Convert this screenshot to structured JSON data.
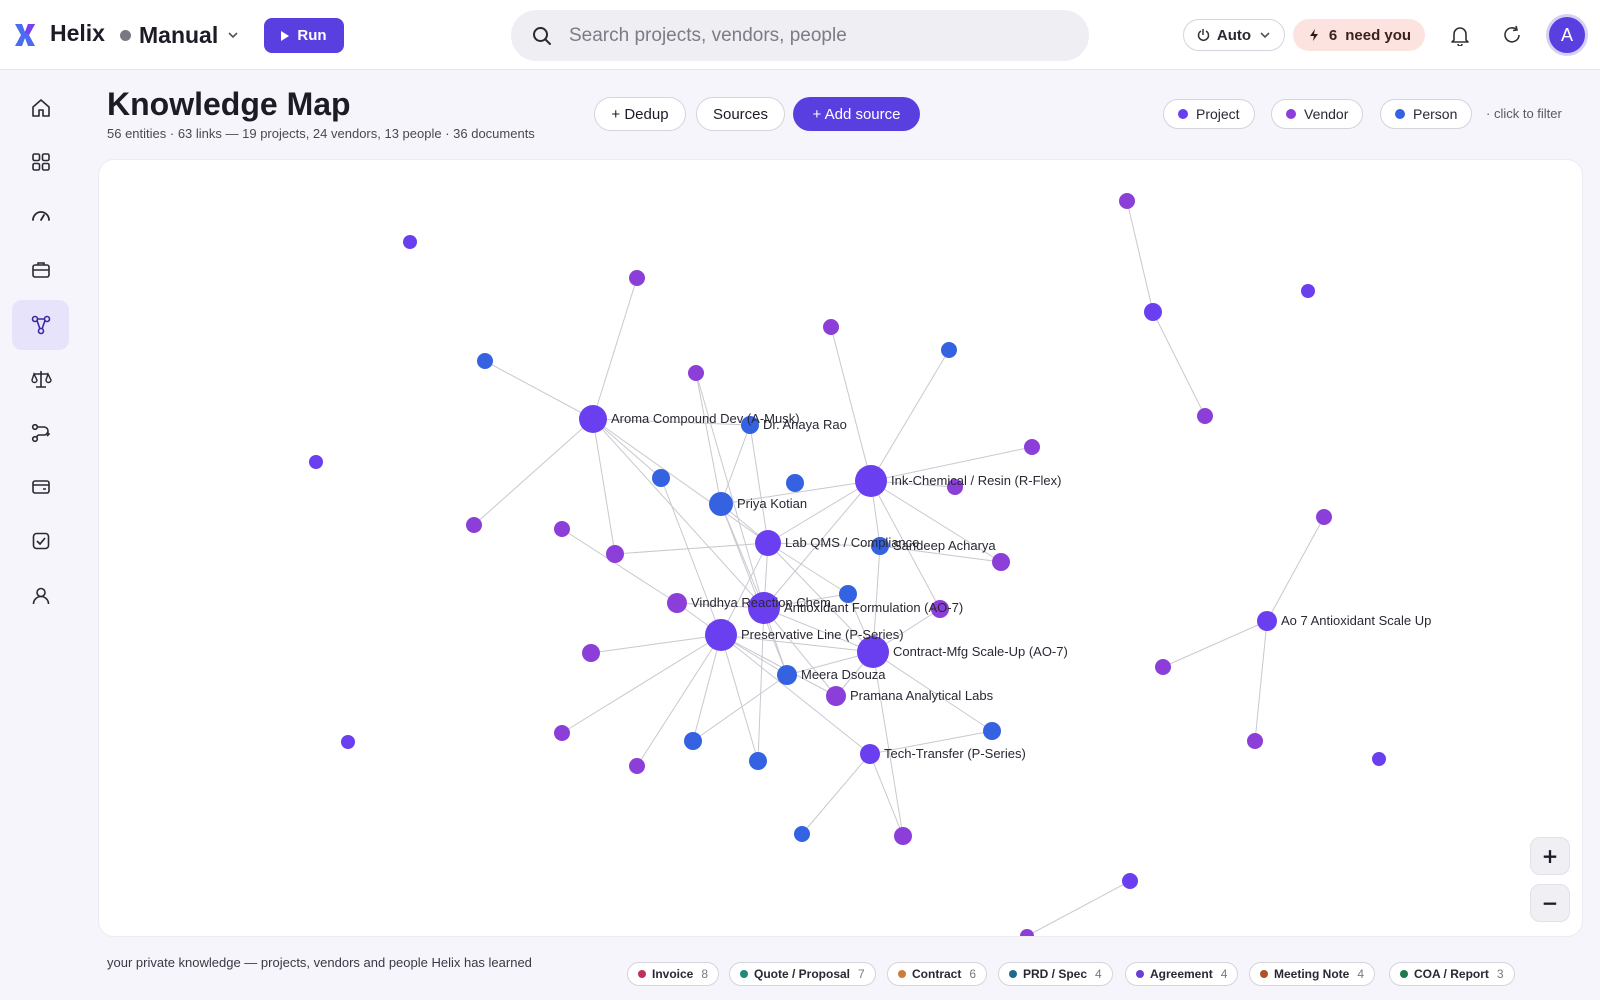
{
  "app": {
    "brand": "Helix",
    "mode_label": "Manual",
    "run_label": "Run",
    "search_placeholder": "Search projects, vendors, people",
    "auto_label": "Auto",
    "need_count": "6",
    "need_label": "need you",
    "avatar_initial": "A",
    "accent": "#5a3fe0"
  },
  "sidebar": {
    "items": [
      {
        "name": "home-icon"
      },
      {
        "name": "grid-icon"
      },
      {
        "name": "gauge-icon"
      },
      {
        "name": "briefcase-icon"
      },
      {
        "name": "graph-icon",
        "active": true
      },
      {
        "name": "scale-icon"
      },
      {
        "name": "workflow-icon"
      },
      {
        "name": "wallet-icon"
      },
      {
        "name": "checkbox-icon"
      },
      {
        "name": "user-icon"
      }
    ]
  },
  "header": {
    "title": "Knowledge Map",
    "subtitle": "56 entities · 63 links — 19 projects, 24 vendors, 13 people · 36 documents",
    "dedup_label": "+ Dedup",
    "sources_label": "Sources",
    "add_source_label": "+ Add source",
    "filters": [
      {
        "label": "Project",
        "color": "#6a3ff0"
      },
      {
        "label": "Vendor",
        "color": "#8b3fd8"
      },
      {
        "label": "Person",
        "color": "#3562e0"
      }
    ],
    "filter_hint": "· click to filter"
  },
  "graph": {
    "colors": {
      "project": "#6a3ff0",
      "vendor": "#8b3fd8",
      "person": "#3562e0",
      "edge": "#c9c8cf"
    },
    "labels": {
      "aroma": "Aroma Compound Dev (A-Musk)",
      "anaya": "Dr. Anaya Rao",
      "ink": "Ink-Chemical / Resin (R-Flex)",
      "priya": "Priya Kotian",
      "labqms": "Lab QMS / Compliance",
      "sandeep": "Sandeep Acharya",
      "vindhya": "Vindhya Reaction Chem",
      "antiox": "Antioxidant Formulation (AO-7)",
      "preserv": "Preservative Line (P-Series)",
      "contract": "Contract-Mfg Scale-Up (AO-7)",
      "meera": "Meera Dsouza",
      "pramana": "Pramana Analytical Labs",
      "tech": "Tech-Transfer (P-Series)",
      "ao7": "Ao 7 Antioxidant Scale Up"
    }
  },
  "zoom": {
    "in": "+",
    "out": "−"
  },
  "footer": {
    "note": "your private knowledge — projects, vendors and people Helix has learned",
    "tags": [
      {
        "label": "Invoice",
        "count": "8",
        "color": "#c0305a"
      },
      {
        "label": "Quote / Proposal",
        "count": "7",
        "color": "#1e8a7a"
      },
      {
        "label": "Contract",
        "count": "6",
        "color": "#d07a3a"
      },
      {
        "label": "PRD / Spec",
        "count": "4",
        "color": "#1e6a8a"
      },
      {
        "label": "Agreement",
        "count": "4",
        "color": "#6a3fd8"
      },
      {
        "label": "Meeting Note",
        "count": "4",
        "color": "#b0502a"
      },
      {
        "label": "COA / Report",
        "count": "3",
        "color": "#1e7a4a"
      }
    ]
  }
}
